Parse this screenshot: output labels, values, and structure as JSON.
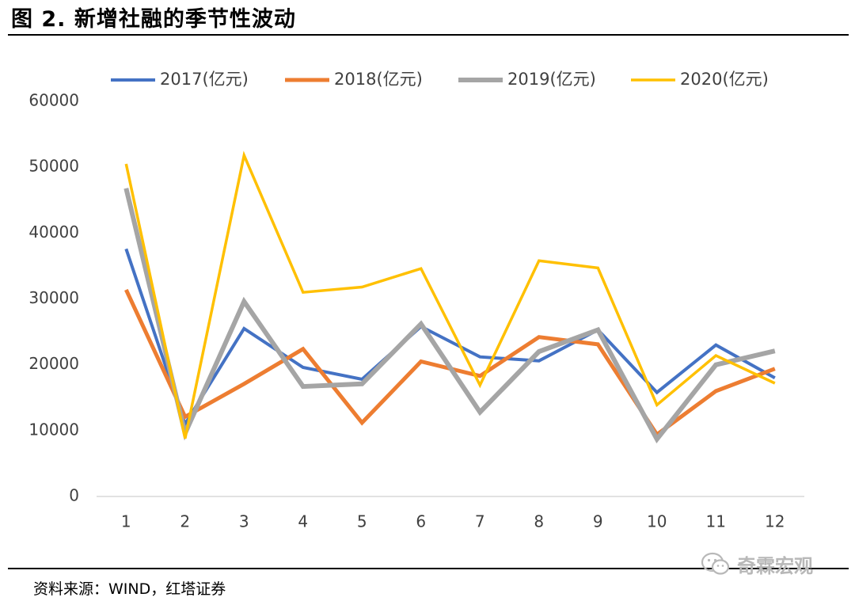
{
  "figure": {
    "title": "图 2. 新增社融的季节性波动",
    "source": "资料来源：WIND，红塔证券",
    "watermark": "奇霖宏观",
    "watermark_icon": "wechat-icon"
  },
  "chart_data": {
    "type": "line",
    "title": "",
    "xlabel": "",
    "ylabel": "",
    "categories": [
      "1",
      "2",
      "3",
      "4",
      "5",
      "6",
      "7",
      "8",
      "9",
      "10",
      "11",
      "12"
    ],
    "ylim": [
      0,
      60000
    ],
    "yticks": [
      0,
      10000,
      20000,
      30000,
      40000,
      50000,
      60000
    ],
    "grid": false,
    "legend_position": "top",
    "series": [
      {
        "name": "2017(亿元)",
        "color": "#4472C4",
        "values": [
          37600,
          11000,
          25500,
          19600,
          17800,
          25800,
          21200,
          20600,
          25300,
          15800,
          23000,
          18000
        ]
      },
      {
        "name": "2018(亿元)",
        "color": "#ED7D31",
        "values": [
          31400,
          12100,
          17100,
          22400,
          11200,
          20500,
          18300,
          24200,
          23100,
          9400,
          16000,
          19400
        ]
      },
      {
        "name": "2019(亿元)",
        "color": "#A5A5A5",
        "values": [
          46800,
          9600,
          29600,
          16700,
          17100,
          26200,
          12800,
          22000,
          25300,
          8700,
          20000,
          22100
        ]
      },
      {
        "name": "2020(亿元)",
        "color": "#FFC000",
        "values": [
          50500,
          8800,
          51800,
          31000,
          31800,
          34600,
          16900,
          35800,
          34700,
          13900,
          21400,
          17200
        ]
      }
    ]
  }
}
